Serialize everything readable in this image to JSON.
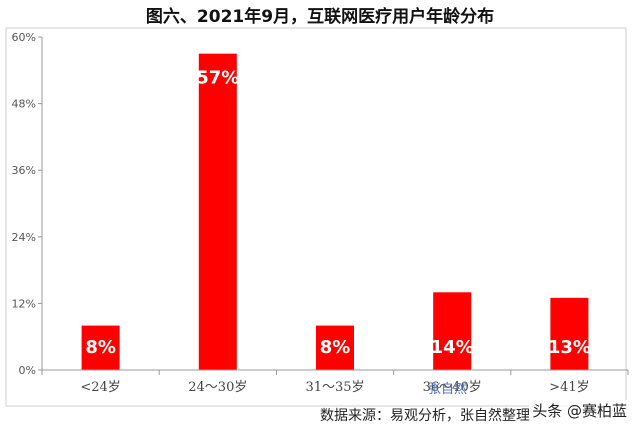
{
  "chart_data": {
    "type": "bar",
    "title": "图六、2021年9月，互联网医疗用户年龄分布",
    "categories": [
      "<24岁",
      "24～30岁",
      "31～35岁",
      "36～40岁",
      ">41岁"
    ],
    "values": [
      8,
      57,
      8,
      14,
      13
    ],
    "data_labels": [
      "8%",
      "57%",
      "8%",
      "14%",
      "13%"
    ],
    "ylim": [
      0,
      60
    ],
    "yticks": [
      0,
      12,
      24,
      36,
      48,
      60
    ],
    "ytick_labels": [
      "0%",
      "12%",
      "24%",
      "36%",
      "48%",
      "60%"
    ],
    "xlabel": "",
    "ylabel": "",
    "grid": false,
    "bar_color": "#ff0000"
  },
  "source_note": "数据来源：易观分析，张自然整理",
  "overlay_name": "张自然",
  "watermark": "头条 @赛柏蓝"
}
